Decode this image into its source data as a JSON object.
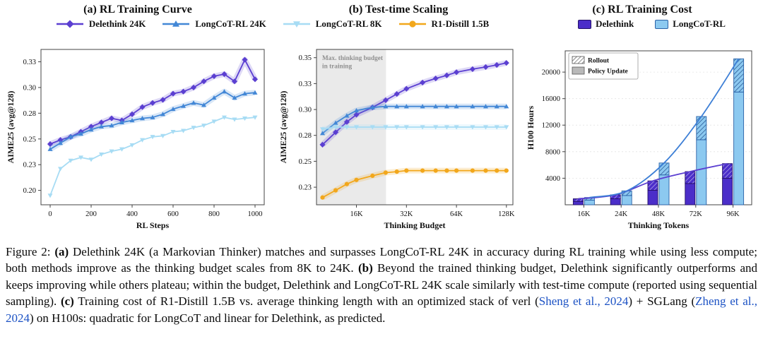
{
  "panels": {
    "a_title": "(a) RL Training Curve",
    "b_title": "(b) Test-time Scaling",
    "c_title": "(c) RL Training Cost"
  },
  "legend_ab": {
    "items": [
      {
        "label": "Delethink 24K",
        "color": "#5B3FD1",
        "marker": "diamond"
      },
      {
        "label": "LongCoT-RL 24K",
        "color": "#4287D6",
        "marker": "triangle-up"
      },
      {
        "label": "LongCoT-RL 8K",
        "color": "#A7DCF4",
        "marker": "triangle-down"
      },
      {
        "label": "R1-Distill 1.5B",
        "color": "#F2A71B",
        "marker": "circle"
      }
    ]
  },
  "legend_c": {
    "items": [
      {
        "label": "Delethink",
        "color": "#4B2EC9",
        "edge": "#241168"
      },
      {
        "label": "LongCoT-RL",
        "color": "#8CC9F0",
        "edge": "#2B62A8"
      }
    ]
  },
  "chart_data": [
    {
      "id": "a",
      "type": "line",
      "title": "(a) RL Training Curve",
      "xlabel": "RL Steps",
      "ylabel": "AIME25 (avg@128)",
      "xlim": [
        -45,
        1045
      ],
      "ylim": [
        0.186,
        0.337
      ],
      "xticks": [
        0,
        200,
        400,
        600,
        800,
        1000
      ],
      "xtick_labels": [
        "0",
        "200",
        "400",
        "600",
        "800",
        "1000"
      ],
      "yticks": [
        0.2,
        0.225,
        0.25,
        0.275,
        0.3,
        0.325
      ],
      "ytick_labels": [
        "0.20",
        "0.23",
        "0.25",
        "0.28",
        "0.30",
        "0.33"
      ],
      "x": [
        0,
        50,
        100,
        150,
        200,
        250,
        300,
        350,
        400,
        450,
        500,
        550,
        600,
        650,
        700,
        750,
        800,
        850,
        900,
        950,
        1000
      ],
      "series": [
        {
          "name": "Delethink 24K",
          "color": "#5B3FD1",
          "marker": "diamond",
          "band": true,
          "values": [
            0.245,
            0.249,
            0.252,
            0.257,
            0.262,
            0.266,
            0.27,
            0.268,
            0.274,
            0.281,
            0.285,
            0.288,
            0.294,
            0.296,
            0.3,
            0.306,
            0.311,
            0.313,
            0.306,
            0.327,
            0.308
          ]
        },
        {
          "name": "LongCoT-RL 24K",
          "color": "#4287D6",
          "marker": "triangle-up",
          "band": true,
          "values": [
            0.24,
            0.246,
            0.252,
            0.255,
            0.259,
            0.262,
            0.263,
            0.266,
            0.268,
            0.27,
            0.271,
            0.274,
            0.279,
            0.282,
            0.285,
            0.283,
            0.29,
            0.296,
            0.29,
            0.294,
            0.295
          ]
        },
        {
          "name": "LongCoT-RL 8K",
          "color": "#A7DCF4",
          "marker": "triangle-down",
          "band": false,
          "values": [
            0.195,
            0.221,
            0.229,
            0.232,
            0.23,
            0.235,
            0.238,
            0.24,
            0.244,
            0.249,
            0.252,
            0.253,
            0.257,
            0.258,
            0.261,
            0.263,
            0.267,
            0.271,
            0.269,
            0.27,
            0.271
          ]
        }
      ]
    },
    {
      "id": "b",
      "type": "line",
      "log_x": true,
      "title": "(b) Test-time Scaling",
      "xlabel": "Thinking Budget",
      "ylabel": "AIME25 (avg@128)",
      "xlim": [
        9.2,
        140
      ],
      "ylim": [
        0.208,
        0.358
      ],
      "xticks": [
        16,
        32,
        64,
        128
      ],
      "xtick_labels": [
        "16K",
        "32K",
        "64K",
        "128K"
      ],
      "yticks": [
        0.225,
        0.25,
        0.275,
        0.3,
        0.325,
        0.35
      ],
      "ytick_labels": [
        "0.23",
        "0.25",
        "0.28",
        "0.30",
        "0.33",
        "0.35"
      ],
      "shade": {
        "to": 24,
        "label_lines": [
          "Max. thinking budget",
          "in training"
        ]
      },
      "x": [
        10,
        12,
        14,
        16,
        20,
        24,
        28,
        32,
        40,
        48,
        56,
        64,
        80,
        96,
        112,
        128
      ],
      "series": [
        {
          "name": "Delethink 24K",
          "color": "#5B3FD1",
          "marker": "diamond",
          "band": true,
          "values": [
            0.266,
            0.278,
            0.288,
            0.295,
            0.302,
            0.309,
            0.315,
            0.32,
            0.326,
            0.33,
            0.333,
            0.336,
            0.339,
            0.341,
            0.343,
            0.345
          ]
        },
        {
          "name": "LongCoT-RL 24K",
          "color": "#4287D6",
          "marker": "triangle-up",
          "band": true,
          "values": [
            0.277,
            0.287,
            0.294,
            0.299,
            0.302,
            0.303,
            0.303,
            0.303,
            0.303,
            0.303,
            0.303,
            0.303,
            0.303,
            0.303,
            0.303,
            0.303
          ]
        },
        {
          "name": "LongCoT-RL 8K",
          "color": "#A7DCF4",
          "marker": "triangle-down",
          "band": true,
          "values": [
            0.281,
            0.283,
            0.283,
            0.283,
            0.283,
            0.283,
            0.283,
            0.283,
            0.283,
            0.283,
            0.283,
            0.283,
            0.283,
            0.283,
            0.283,
            0.283
          ]
        },
        {
          "name": "R1-Distill 1.5B",
          "color": "#F2A71B",
          "marker": "circle",
          "band": true,
          "values": [
            0.215,
            0.222,
            0.228,
            0.232,
            0.236,
            0.239,
            0.24,
            0.241,
            0.241,
            0.241,
            0.241,
            0.241,
            0.241,
            0.241,
            0.241,
            0.241
          ]
        }
      ]
    },
    {
      "id": "c",
      "type": "bar",
      "title": "(c) RL Training Cost",
      "xlabel": "Thinking Tokens",
      "ylabel": "H100 Hours",
      "categories": [
        "16K",
        "24K",
        "48K",
        "72K",
        "96K"
      ],
      "ylim": [
        0,
        23200
      ],
      "yticks": [
        4000,
        8000,
        12000,
        16000,
        20000
      ],
      "ytick_labels": [
        "4000",
        "8000",
        "12000",
        "16000",
        "20000"
      ],
      "inner_legend": [
        {
          "label": "Rollout",
          "style": "hatch"
        },
        {
          "label": "Policy Update",
          "style": "solid"
        }
      ],
      "series": [
        {
          "name": "Delethink",
          "color": "#4B2EC9",
          "edge": "#241168",
          "hatch_line": "#BFB3EE",
          "line_color": "#5B3FD1",
          "policy_update": [
            500,
            900,
            2200,
            3200,
            4000
          ],
          "rollout": [
            400,
            600,
            1400,
            1800,
            2200
          ],
          "totals": [
            900,
            1500,
            3600,
            5000,
            6200
          ],
          "trend": "linear"
        },
        {
          "name": "LongCoT-RL",
          "color": "#8CC9F0",
          "edge": "#2B62A8",
          "hatch_line": "#1F4E8C",
          "line_color": "#3D7FD6",
          "policy_update": [
            700,
            1400,
            4500,
            9800,
            17000
          ],
          "rollout": [
            400,
            700,
            1800,
            3500,
            5000
          ],
          "totals": [
            1100,
            2100,
            6300,
            13300,
            22000
          ],
          "trend": "quadratic"
        }
      ]
    }
  ],
  "caption": {
    "link_color": "#1C52C4",
    "segments": [
      {
        "t": "Figure 2: ",
        "s": "normal"
      },
      {
        "t": "(a)",
        "s": "bold"
      },
      {
        "t": " Delethink 24K (a Markovian Thinker) matches and surpasses LongCoT-RL 24K in accuracy during RL training while using less compute; both methods improve as the thinking budget scales from 8K to 24K. ",
        "s": "normal"
      },
      {
        "t": "(b)",
        "s": "bold"
      },
      {
        "t": " Beyond the trained thinking budget, Delethink significantly outperforms and keeps improving while others plateau; within the budget, Delethink and LongCoT-RL 24K scale similarly with test-time compute (reported using sequential sampling). ",
        "s": "normal"
      },
      {
        "t": "(c)",
        "s": "bold"
      },
      {
        "t": " Training cost of R1-Distill 1.5B vs. average thinking length with an optimized stack of verl (",
        "s": "normal"
      },
      {
        "t": "Sheng et al., 2024",
        "s": "link"
      },
      {
        "t": ") + SGLang (",
        "s": "normal"
      },
      {
        "t": "Zheng et al., 2024",
        "s": "link"
      },
      {
        "t": ") on H100s: quadratic for LongCoT and linear for Delethink, as predicted.",
        "s": "normal"
      }
    ]
  }
}
